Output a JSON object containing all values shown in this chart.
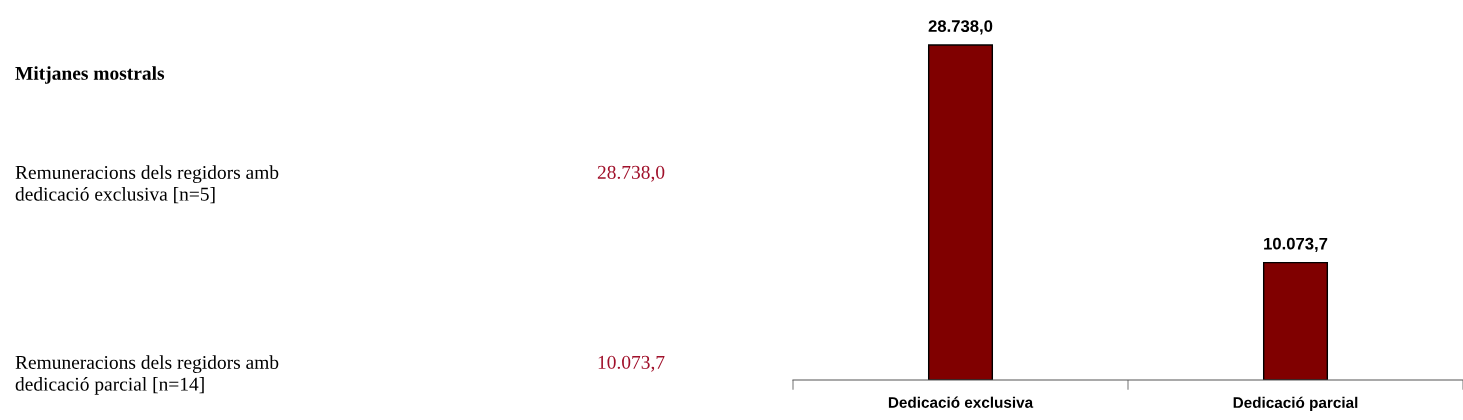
{
  "chart_data": [
    {
      "type": "other",
      "title": "Mitjanes mostrals",
      "annotations": [
        "Remuneracions dels regidors amb\ndedicació exclusiva [n=5]",
        "28.738,0",
        "Remuneracions dels regidors amb\ndedicació parcial [n=14]",
        "10.073,7"
      ]
    },
    {
      "type": "bar",
      "categories": [
        "Dedicació exclusiva",
        "Dedicació parcial"
      ],
      "values": [
        28738.0,
        10073.7
      ],
      "color": "#800000",
      "value_labels": [
        "28.738,0",
        "10.073,7"
      ],
      "grid": false,
      "legend": false
    }
  ]
}
